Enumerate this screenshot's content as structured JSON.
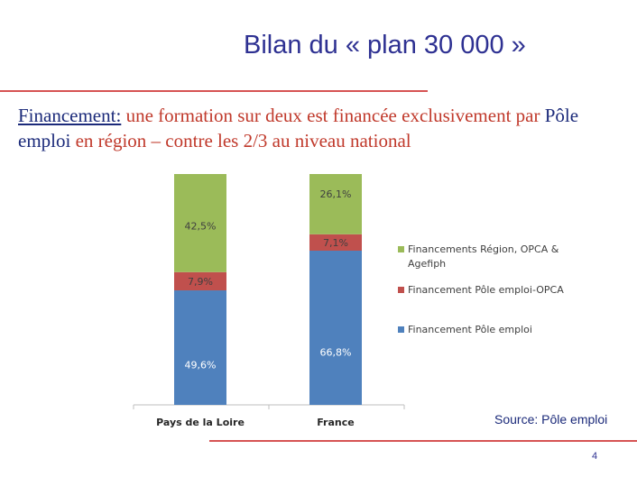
{
  "header": {
    "title": "Bilan du « plan 30 000 »"
  },
  "subtitle": {
    "part1": "Financement:",
    "part2": " une formation sur deux est financée exclusivement par ",
    "part3": "Pôle emploi",
    "part4": " en région – contre les 2/3 au niveau national"
  },
  "chart_data": {
    "type": "bar",
    "stacked": true,
    "title": "",
    "xlabel": "",
    "ylabel": "",
    "ylim": [
      0,
      100
    ],
    "grid": false,
    "legend_position": "right",
    "categories": [
      "Pays de la Loire",
      "France"
    ],
    "series": [
      {
        "name": "Financement Pôle emploi",
        "color": "#4f81bd",
        "values": [
          49.6,
          66.8
        ],
        "labels": [
          "49,6%",
          "66,8%"
        ]
      },
      {
        "name": "Financement Pôle emploi-OPCA",
        "color": "#c0504d",
        "values": [
          7.9,
          7.1
        ],
        "labels": [
          "7,9%",
          "7,1%"
        ]
      },
      {
        "name": "Financements Région, OPCA & Agefiph",
        "color": "#9bbb59",
        "values": [
          42.5,
          26.1
        ],
        "labels": [
          "42,5%",
          "26,1%"
        ]
      }
    ],
    "legend_order": [
      2,
      1,
      0
    ],
    "legend_lines": [
      [
        "Financements Région, OPCA &",
        "Agefiph"
      ],
      [
        "Financement Pôle emploi-OPCA"
      ],
      [
        "Financement Pôle emploi"
      ]
    ]
  },
  "footer": {
    "source": "Source:  Pôle emploi",
    "page_number": "4"
  }
}
